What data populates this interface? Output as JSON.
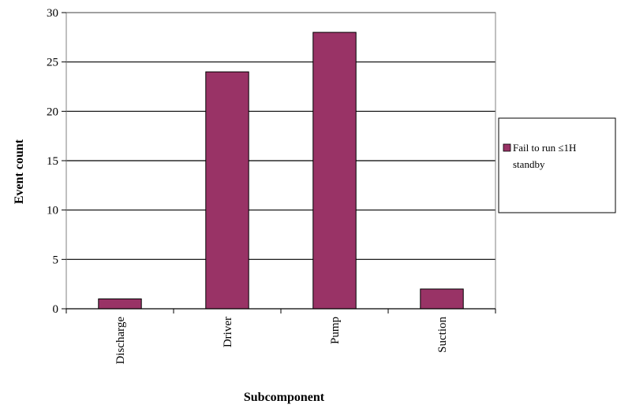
{
  "chart_data": {
    "type": "bar",
    "categories": [
      "Discharge",
      "Driver",
      "Pump",
      "Suction"
    ],
    "series": [
      {
        "name": "Fail to run ≤1H standby",
        "values": [
          1,
          24,
          28,
          2
        ],
        "color": "#993366"
      }
    ],
    "xlabel": "Subcomponent",
    "ylabel": "Event count",
    "ylim": [
      0,
      30
    ],
    "yticks": [
      0,
      5,
      10,
      15,
      20,
      25,
      30
    ],
    "grid": true,
    "legend_position": "right"
  },
  "legend": {
    "line1": "Fail to run ≤1H",
    "line2": "standby"
  }
}
